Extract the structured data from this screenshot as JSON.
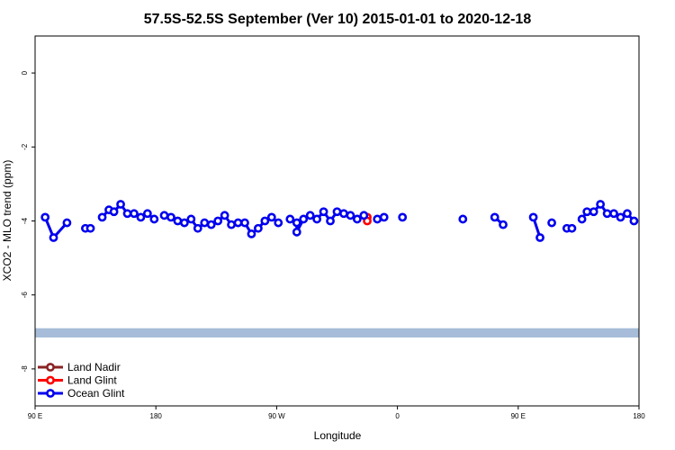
{
  "chart_data": {
    "type": "line",
    "title": "57.5S-52.5S September (Ver 10)   2015-01-01 to 2020-12-18",
    "xlabel": "Longitude",
    "ylabel": "XCO2 - MLO trend (ppm)",
    "xlim": [
      90,
      450
    ],
    "ylim": [
      -9,
      1
    ],
    "x_ticks": [
      {
        "value": 90,
        "label": "90 E"
      },
      {
        "value": 180,
        "label": "180"
      },
      {
        "value": 270,
        "label": "90 W"
      },
      {
        "value": 360,
        "label": "0"
      },
      {
        "value": 450,
        "label": "90 E"
      },
      {
        "value": 540,
        "label": "180"
      }
    ],
    "y_ticks": [
      {
        "value": 0,
        "label": "0"
      },
      {
        "value": -2,
        "label": "-2"
      },
      {
        "value": -4,
        "label": "-4"
      },
      {
        "value": -6,
        "label": "-6"
      },
      {
        "value": -8,
        "label": "-8"
      }
    ],
    "x_tick_values_mod": true,
    "grid": false,
    "legend_position": "bottom-left",
    "land_band": {
      "ymin": -7.15,
      "ymax": -6.9,
      "color": "#a6bcd8"
    },
    "series": [
      {
        "name": "Land Nadir",
        "color": "#8b2323",
        "segments": []
      },
      {
        "name": "Land Glint",
        "color": "#ff0000",
        "segments": [
          [
            [
              288,
              -3.9
            ],
            [
              288,
              -4.0
            ]
          ]
        ]
      },
      {
        "name": "Ocean Glint",
        "color": "#0000ee",
        "segments": [
          [
            [
              96,
              -3.9
            ],
            [
              101,
              -4.45
            ],
            [
              109,
              -4.05
            ]
          ],
          [
            [
              120,
              -4.2
            ],
            [
              123,
              -4.2
            ]
          ],
          [
            [
              130,
              -3.9
            ],
            [
              134,
              -3.7
            ],
            [
              137,
              -3.75
            ],
            [
              141,
              -3.55
            ],
            [
              145,
              -3.8
            ],
            [
              149,
              -3.8
            ],
            [
              153,
              -3.9
            ],
            [
              157,
              -3.8
            ],
            [
              161,
              -3.95
            ]
          ],
          [
            [
              167,
              -3.85
            ],
            [
              171,
              -3.9
            ],
            [
              175,
              -4.0
            ],
            [
              179,
              -4.05
            ],
            [
              183,
              -3.95
            ],
            [
              187,
              -4.2
            ],
            [
              191,
              -4.05
            ],
            [
              195,
              -4.1
            ],
            [
              199,
              -4.0
            ],
            [
              203,
              -3.85
            ],
            [
              207,
              -4.1
            ],
            [
              211,
              -4.05
            ],
            [
              215,
              -4.05
            ],
            [
              219,
              -4.35
            ],
            [
              223,
              -4.2
            ],
            [
              227,
              -4.0
            ],
            [
              231,
              -3.9
            ],
            [
              235,
              -4.05
            ]
          ],
          [
            [
              242,
              -3.95
            ],
            [
              246,
              -4.05
            ],
            [
              246,
              -4.3
            ],
            [
              250,
              -3.95
            ],
            [
              254,
              -3.85
            ],
            [
              258,
              -3.95
            ],
            [
              262,
              -3.75
            ],
            [
              266,
              -4.0
            ],
            [
              270,
              -3.75
            ],
            [
              274,
              -3.8
            ],
            [
              278,
              -3.85
            ],
            [
              282,
              -3.95
            ],
            [
              286,
              -3.85
            ]
          ],
          [
            [
              294,
              -3.95
            ],
            [
              298,
              -3.9
            ]
          ],
          [
            [
              309,
              -3.9
            ]
          ],
          [
            [
              345,
              -3.95
            ]
          ],
          [
            [
              364,
              -3.9
            ],
            [
              369,
              -4.1
            ]
          ],
          [
            [
              387,
              -3.9
            ],
            [
              391,
              -4.45
            ]
          ],
          [
            [
              398,
              -4.05
            ]
          ],
          [
            [
              407,
              -4.2
            ],
            [
              410,
              -4.2
            ]
          ],
          [
            [
              416,
              -3.95
            ],
            [
              419,
              -3.75
            ],
            [
              423,
              -3.75
            ],
            [
              427,
              -3.55
            ],
            [
              431,
              -3.8
            ],
            [
              435,
              -3.8
            ],
            [
              439,
              -3.9
            ],
            [
              443,
              -3.8
            ],
            [
              447,
              -4.0
            ]
          ]
        ]
      }
    ],
    "land_glint_extra": [
      [
        244,
        -4.0
      ],
      [
        244,
        -3.9
      ]
    ]
  }
}
